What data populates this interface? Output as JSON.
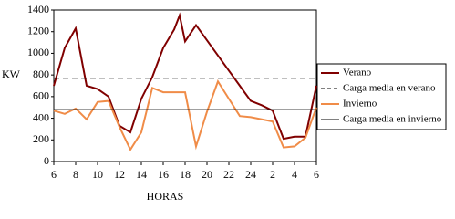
{
  "chart_data": {
    "type": "line",
    "x_label": "HORAS",
    "y_label": "KW",
    "x": [
      6,
      7,
      8,
      9,
      10,
      11,
      12,
      13,
      14,
      15,
      16,
      17,
      17.5,
      18,
      19,
      20,
      21,
      22,
      23,
      24,
      25,
      26,
      27,
      28,
      29,
      30
    ],
    "xlim": [
      6,
      30
    ],
    "xticks": [
      6,
      8,
      10,
      12,
      14,
      16,
      18,
      20,
      22,
      24,
      {
        "value": 26,
        "label": "2"
      },
      {
        "value": 28,
        "label": "4"
      },
      {
        "value": 30,
        "label": "6"
      }
    ],
    "ylim": [
      0,
      1400
    ],
    "yticks": [
      0,
      200,
      400,
      600,
      800,
      1000,
      1200,
      1400
    ],
    "legend": "right",
    "series": [
      {
        "name": "Verano",
        "color": "#800000",
        "values": [
          700,
          1050,
          1230,
          700,
          670,
          600,
          330,
          270,
          580,
          780,
          1050,
          1220,
          1350,
          1110,
          1260,
          1120,
          980,
          840,
          700,
          560,
          520,
          470,
          210,
          230,
          230,
          700
        ]
      },
      {
        "name": "Carga media en verano",
        "color": "#000000",
        "dashed": true,
        "value": 770
      },
      {
        "name": "Invierno",
        "color": "#f08c48",
        "values": [
          470,
          440,
          490,
          390,
          550,
          560,
          320,
          110,
          270,
          680,
          640,
          640,
          640,
          640,
          140,
          460,
          740,
          580,
          420,
          410,
          390,
          370,
          130,
          140,
          220,
          500
        ]
      },
      {
        "name": "Carga media en invierno",
        "color": "#000000",
        "value": 480
      }
    ]
  }
}
